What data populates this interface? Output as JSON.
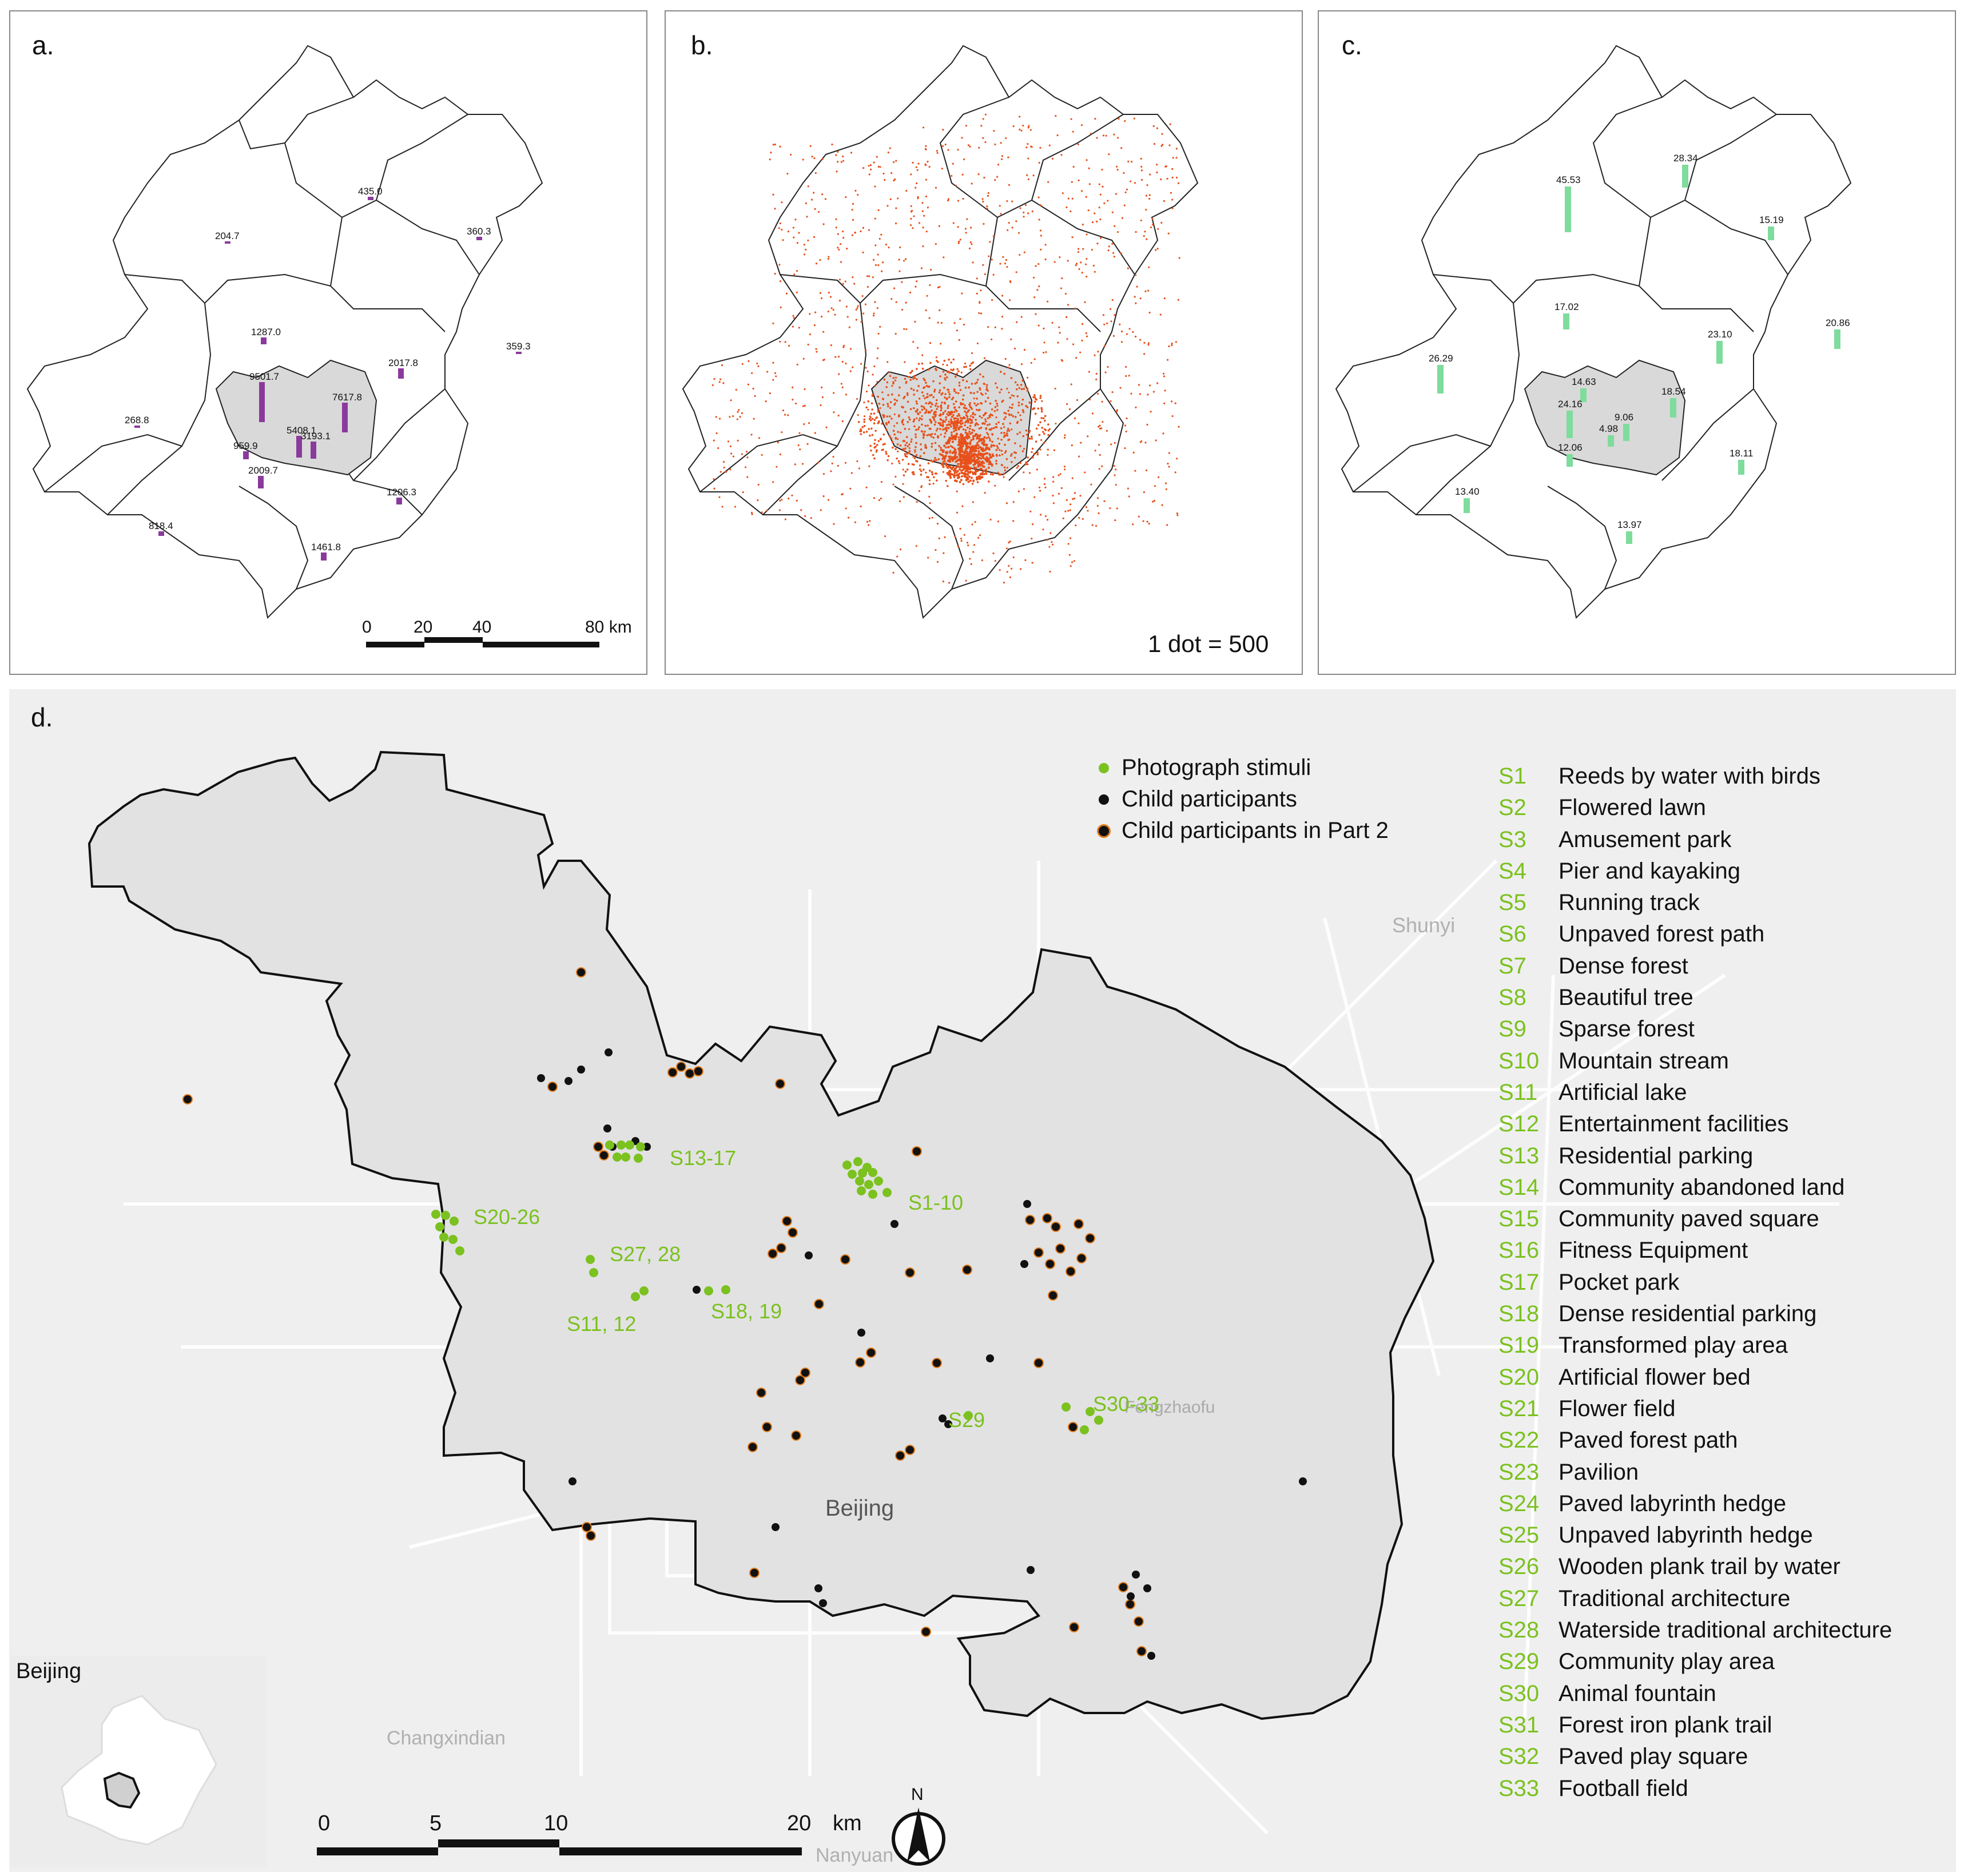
{
  "panels": {
    "a": {
      "label": "a.",
      "values": [
        {
          "id": "a1",
          "text": "435.0"
        },
        {
          "id": "a2",
          "text": "204.7"
        },
        {
          "id": "a3",
          "text": "360.3"
        },
        {
          "id": "a4",
          "text": "1287.0"
        },
        {
          "id": "a5",
          "text": "2017.8"
        },
        {
          "id": "a6",
          "text": "359.3"
        },
        {
          "id": "a7",
          "text": "9501.7"
        },
        {
          "id": "a8",
          "text": "7617.8"
        },
        {
          "id": "a9",
          "text": "268.8"
        },
        {
          "id": "a10",
          "text": "5408.1"
        },
        {
          "id": "a11",
          "text": "3193.1"
        },
        {
          "id": "a12",
          "text": "959.9"
        },
        {
          "id": "a13",
          "text": "2009.7"
        },
        {
          "id": "a14",
          "text": "1206.3"
        },
        {
          "id": "a15",
          "text": "818.4"
        },
        {
          "id": "a16",
          "text": "1461.8"
        }
      ],
      "scale": {
        "t0": "0",
        "t1": "20",
        "t2": "40",
        "t3": "80 km"
      }
    },
    "b": {
      "label": "b.",
      "note": "1 dot = 500"
    },
    "c": {
      "label": "c.",
      "values": [
        {
          "id": "c1",
          "text": "45.53"
        },
        {
          "id": "c2",
          "text": "28.34"
        },
        {
          "id": "c3",
          "text": "15.19"
        },
        {
          "id": "c4",
          "text": "17.02"
        },
        {
          "id": "c5",
          "text": "23.10"
        },
        {
          "id": "c6",
          "text": "20.86"
        },
        {
          "id": "c7",
          "text": "26.29"
        },
        {
          "id": "c8",
          "text": "14.63"
        },
        {
          "id": "c9",
          "text": "18.54"
        },
        {
          "id": "c10",
          "text": "24.16"
        },
        {
          "id": "c11",
          "text": "9.06"
        },
        {
          "id": "c12",
          "text": "4.98"
        },
        {
          "id": "c13",
          "text": "12.06"
        },
        {
          "id": "c14",
          "text": "18.11"
        },
        {
          "id": "c15",
          "text": "13.40"
        },
        {
          "id": "c16",
          "text": "13.97"
        }
      ]
    },
    "d": {
      "label": "d.",
      "places": {
        "shunyi": "Shunyi",
        "beijing": "Beijing",
        "fengtai": "Fengzhaofu",
        "changxindian": "Changxindian",
        "nanyuan": "Nanyuan",
        "inset_title": "Beijing"
      },
      "clusters": {
        "s13_17": "S13-17",
        "s1_10": "S1-10",
        "s20_26": "S20-26",
        "s27_28": "S27, 28",
        "s11_12": "S11, 12",
        "s18_19": "S18, 19",
        "s29": "S29",
        "s30_33": "S30-33"
      },
      "legend": [
        {
          "label": "Photograph stimuli",
          "color": "#7bc11f"
        },
        {
          "label": "Child participants",
          "color": "#111111"
        },
        {
          "label": "Child participants in Part 2",
          "color": "#111111",
          "ring": "#e07b1a"
        }
      ],
      "scale": {
        "t0": "0",
        "t1": "5",
        "t2": "10",
        "t3": "20",
        "unit": "km"
      },
      "north": "N",
      "stimuli": [
        {
          "code": "S1",
          "name": "Reeds by water with birds"
        },
        {
          "code": "S2",
          "name": "Flowered lawn"
        },
        {
          "code": "S3",
          "name": "Amusement park"
        },
        {
          "code": "S4",
          "name": "Pier and kayaking"
        },
        {
          "code": "S5",
          "name": "Running track"
        },
        {
          "code": "S6",
          "name": "Unpaved forest path"
        },
        {
          "code": "S7",
          "name": "Dense forest"
        },
        {
          "code": "S8",
          "name": "Beautiful tree"
        },
        {
          "code": "S9",
          "name": "Sparse forest"
        },
        {
          "code": "S10",
          "name": "Mountain stream"
        },
        {
          "code": "S11",
          "name": "Artificial lake"
        },
        {
          "code": "S12",
          "name": "Entertainment facilities"
        },
        {
          "code": "S13",
          "name": "Residential parking"
        },
        {
          "code": "S14",
          "name": "Community abandoned land"
        },
        {
          "code": "S15",
          "name": "Community paved square"
        },
        {
          "code": "S16",
          "name": "Fitness Equipment"
        },
        {
          "code": "S17",
          "name": "Pocket park"
        },
        {
          "code": "S18",
          "name": "Dense residential parking"
        },
        {
          "code": "S19",
          "name": "Transformed play area"
        },
        {
          "code": "S20",
          "name": "Artificial flower bed"
        },
        {
          "code": "S21",
          "name": "Flower field"
        },
        {
          "code": "S22",
          "name": "Paved forest path"
        },
        {
          "code": "S23",
          "name": "Pavilion"
        },
        {
          "code": "S24",
          "name": "Paved labyrinth hedge"
        },
        {
          "code": "S25",
          "name": "Unpaved labyrinth hedge"
        },
        {
          "code": "S26",
          "name": "Wooden plank trail by water"
        },
        {
          "code": "S27",
          "name": "Traditional architecture"
        },
        {
          "code": "S28",
          "name": "Waterside traditional architecture"
        },
        {
          "code": "S29",
          "name": "Community play area"
        },
        {
          "code": "S30",
          "name": "Animal fountain"
        },
        {
          "code": "S31",
          "name": "Forest iron plank trail"
        },
        {
          "code": "S32",
          "name": "Paved play square"
        },
        {
          "code": "S33",
          "name": "Football field"
        }
      ]
    }
  },
  "colors": {
    "bar_a": "#8a3a9c",
    "bar_c": "#7edc9c",
    "dots_b": "#e8501a",
    "stim": "#7bc11f",
    "participant": "#111111",
    "ring": "#e07b1a",
    "map_bg": "#ececec",
    "district_fill": "#e6e6e6"
  }
}
